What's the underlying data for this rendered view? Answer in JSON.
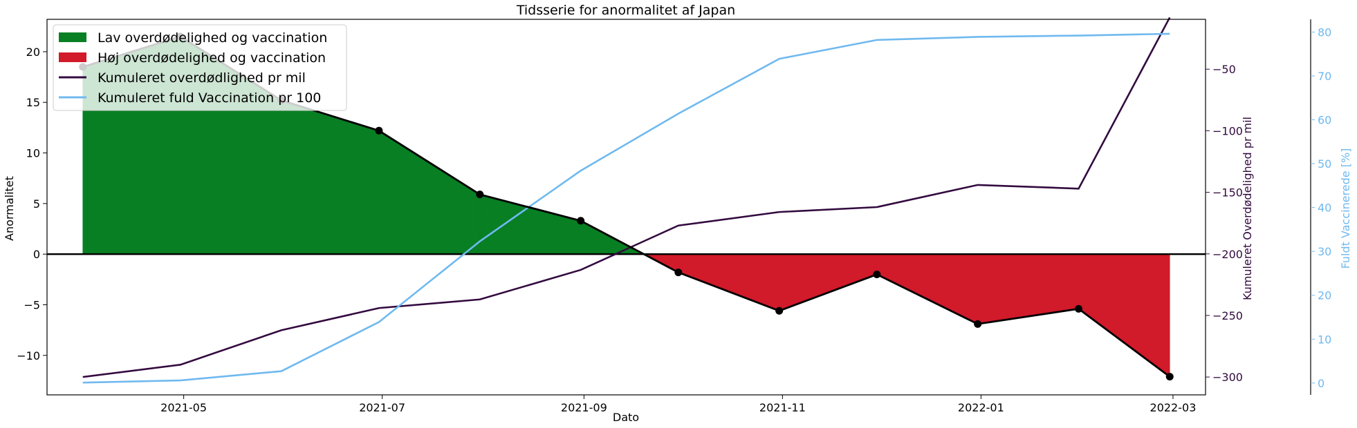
{
  "chart_data": {
    "type": "line",
    "title": "Tidsserie for anormalitet af Japan",
    "xlabel": "Dato",
    "ylabel": "Anormalitet",
    "ylabel_right": "Kumuleret Overdødelighed pr mil",
    "ylabel_right2": "Fuldt Vaccinerede [%]",
    "x": [
      "2021-03-31",
      "2021-04-30",
      "2021-05-31",
      "2021-06-30",
      "2021-07-31",
      "2021-08-31",
      "2021-09-30",
      "2021-10-31",
      "2021-11-30",
      "2021-12-31",
      "2022-01-31",
      "2022-02-28"
    ],
    "xlim": [
      "2021-03-20",
      "2022-03-11"
    ],
    "xticks": [
      "2021-05-01",
      "2021-07-01",
      "2021-09-01",
      "2021-11-01",
      "2022-01-01",
      "2022-03-01"
    ],
    "xtick_labels": [
      "2021-05",
      "2021-07",
      "2021-09",
      "2021-11",
      "2022-01",
      "2022-03"
    ],
    "ylim": [
      -13.9,
      23.2
    ],
    "yticks": [
      -10,
      -5,
      0,
      5,
      10,
      15,
      20
    ],
    "ylim_right": [
      -314.5,
      -9.5
    ],
    "yticks_right": [
      -300,
      -250,
      -200,
      -150,
      -100,
      -50
    ],
    "ylim_right2": [
      -2.7,
      82.9
    ],
    "yticks_right2": [
      0,
      10,
      20,
      30,
      40,
      50,
      60,
      70,
      80
    ],
    "grid": false,
    "legend_position": "upper-left",
    "series": [
      {
        "name": "Lav overdødelighed og vaccination",
        "kind": "fill-positive",
        "color": "#087f23"
      },
      {
        "name": "Høj overdødelighed og vaccination",
        "kind": "fill-negative",
        "color": "#d11a2a"
      },
      {
        "name": "Kumuleret overdødlighed pr mil",
        "kind": "line",
        "axis": "right",
        "color": "#330a3f",
        "values": [
          -300,
          -290,
          -262,
          -244,
          -237,
          -213,
          -177,
          -166,
          -162,
          -144,
          -147,
          -8
        ]
      },
      {
        "name": "Kumuleret fuld Vaccination pr 100",
        "kind": "line",
        "axis": "right2",
        "color": "#6fb9ef",
        "values": [
          0.1,
          0.6,
          2.7,
          13.9,
          32.3,
          48.4,
          61.4,
          73.9,
          78.2,
          78.9,
          79.2,
          79.6
        ]
      },
      {
        "name": "Anormalitet",
        "kind": "line-markers",
        "axis": "left",
        "color": "#000000",
        "values": [
          18.5,
          21.5,
          15.2,
          12.2,
          5.9,
          3.3,
          -1.8,
          -5.6,
          -2.0,
          -6.9,
          -5.4,
          -12.1
        ]
      }
    ]
  }
}
